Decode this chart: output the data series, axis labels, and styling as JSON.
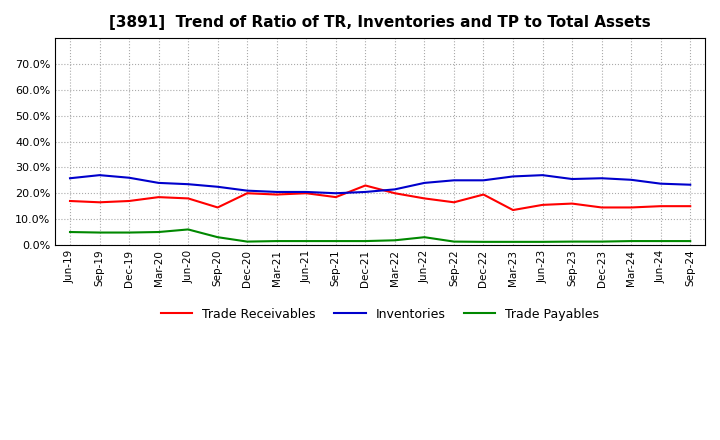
{
  "title": "[3891]  Trend of Ratio of TR, Inventories and TP to Total Assets",
  "labels": [
    "Jun-19",
    "Sep-19",
    "Dec-19",
    "Mar-20",
    "Jun-20",
    "Sep-20",
    "Dec-20",
    "Mar-21",
    "Jun-21",
    "Sep-21",
    "Dec-21",
    "Mar-22",
    "Jun-22",
    "Sep-22",
    "Dec-22",
    "Mar-23",
    "Jun-23",
    "Sep-23",
    "Dec-23",
    "Mar-24",
    "Jun-24",
    "Sep-24"
  ],
  "trade_receivables": [
    0.17,
    0.165,
    0.17,
    0.185,
    0.18,
    0.145,
    0.2,
    0.195,
    0.2,
    0.185,
    0.23,
    0.2,
    0.18,
    0.165,
    0.195,
    0.135,
    0.155,
    0.16,
    0.145,
    0.145,
    0.15,
    0.15
  ],
  "inventories": [
    0.258,
    0.27,
    0.26,
    0.24,
    0.235,
    0.225,
    0.21,
    0.205,
    0.205,
    0.2,
    0.205,
    0.215,
    0.24,
    0.25,
    0.25,
    0.265,
    0.27,
    0.255,
    0.258,
    0.252,
    0.237,
    0.233
  ],
  "trade_payables": [
    0.05,
    0.048,
    0.048,
    0.05,
    0.06,
    0.03,
    0.013,
    0.015,
    0.015,
    0.015,
    0.015,
    0.018,
    0.03,
    0.013,
    0.012,
    0.012,
    0.012,
    0.013,
    0.013,
    0.015,
    0.015,
    0.015
  ],
  "tr_color": "#ff0000",
  "inv_color": "#0000cc",
  "tp_color": "#008800",
  "ylim": [
    0.0,
    0.8
  ],
  "yticks": [
    0.0,
    0.1,
    0.2,
    0.3,
    0.4,
    0.5,
    0.6,
    0.7
  ],
  "background_color": "#ffffff",
  "plot_bg_color": "#ffffff",
  "grid_color": "#aaaaaa",
  "legend_labels": [
    "Trade Receivables",
    "Inventories",
    "Trade Payables"
  ]
}
